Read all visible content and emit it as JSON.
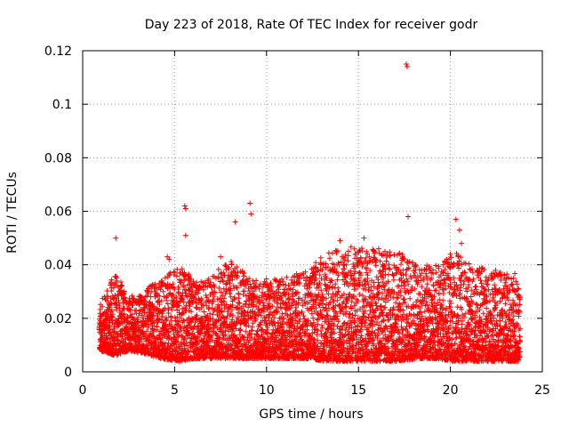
{
  "chart_data": {
    "type": "scatter",
    "title": "Day 223 of 2018, Rate Of TEC Index for receiver godr",
    "xlabel": "GPS time / hours",
    "ylabel": "ROTI / TECUs",
    "xlim": [
      0,
      25
    ],
    "ylim": [
      0,
      0.12
    ],
    "xticks": [
      0,
      5,
      10,
      15,
      20,
      25
    ],
    "yticks": [
      0,
      0.02,
      0.04,
      0.06,
      0.08,
      0.1,
      0.12
    ],
    "xtick_labels": [
      "0",
      "5",
      "10",
      "15",
      "20",
      "25"
    ],
    "ytick_labels": [
      "0",
      "0.02",
      "0.04",
      "0.06",
      "0.08",
      "0.1",
      "0.12"
    ],
    "grid": true,
    "marker": "+",
    "color": "#ff0000",
    "series": [
      {
        "name": "ROTI",
        "notable_points": [
          {
            "x": 1.8,
            "y": 0.05
          },
          {
            "x": 4.6,
            "y": 0.043
          },
          {
            "x": 4.7,
            "y": 0.042
          },
          {
            "x": 5.55,
            "y": 0.062
          },
          {
            "x": 5.6,
            "y": 0.061
          },
          {
            "x": 5.6,
            "y": 0.051
          },
          {
            "x": 7.5,
            "y": 0.043
          },
          {
            "x": 8.3,
            "y": 0.056
          },
          {
            "x": 9.1,
            "y": 0.063
          },
          {
            "x": 9.15,
            "y": 0.059
          },
          {
            "x": 17.6,
            "y": 0.115
          },
          {
            "x": 17.65,
            "y": 0.114
          },
          {
            "x": 17.7,
            "y": 0.058
          },
          {
            "x": 20.3,
            "y": 0.057
          },
          {
            "x": 20.5,
            "y": 0.053
          },
          {
            "x": 20.6,
            "y": 0.048
          },
          {
            "x": 14.0,
            "y": 0.049
          },
          {
            "x": 15.3,
            "y": 0.05
          },
          {
            "x": 16.1,
            "y": 0.046
          }
        ],
        "envelope": [
          {
            "x": 0.9,
            "base": 0.008,
            "peak": 0.025
          },
          {
            "x": 1.8,
            "base": 0.006,
            "peak": 0.038
          },
          {
            "x": 2.5,
            "base": 0.008,
            "peak": 0.028
          },
          {
            "x": 3.3,
            "base": 0.007,
            "peak": 0.03
          },
          {
            "x": 4.2,
            "base": 0.005,
            "peak": 0.035
          },
          {
            "x": 5.3,
            "base": 0.004,
            "peak": 0.04
          },
          {
            "x": 6.3,
            "base": 0.005,
            "peak": 0.033
          },
          {
            "x": 7.3,
            "base": 0.005,
            "peak": 0.038
          },
          {
            "x": 8.2,
            "base": 0.005,
            "peak": 0.042
          },
          {
            "x": 9.2,
            "base": 0.005,
            "peak": 0.034
          },
          {
            "x": 10.2,
            "base": 0.005,
            "peak": 0.035
          },
          {
            "x": 11.2,
            "base": 0.005,
            "peak": 0.036
          },
          {
            "x": 12.2,
            "base": 0.005,
            "peak": 0.038
          },
          {
            "x": 13.2,
            "base": 0.004,
            "peak": 0.045
          },
          {
            "x": 14.2,
            "base": 0.004,
            "peak": 0.047
          },
          {
            "x": 15.2,
            "base": 0.004,
            "peak": 0.047
          },
          {
            "x": 16.2,
            "base": 0.004,
            "peak": 0.045
          },
          {
            "x": 17.2,
            "base": 0.004,
            "peak": 0.045
          },
          {
            "x": 18.2,
            "base": 0.005,
            "peak": 0.04
          },
          {
            "x": 19.2,
            "base": 0.005,
            "peak": 0.04
          },
          {
            "x": 20.2,
            "base": 0.004,
            "peak": 0.045
          },
          {
            "x": 21.2,
            "base": 0.004,
            "peak": 0.04
          },
          {
            "x": 22.2,
            "base": 0.004,
            "peak": 0.038
          },
          {
            "x": 23.2,
            "base": 0.004,
            "peak": 0.038
          },
          {
            "x": 23.8,
            "base": 0.004,
            "peak": 0.036
          }
        ],
        "x_start": 0.9,
        "x_end": 23.8
      }
    ]
  }
}
